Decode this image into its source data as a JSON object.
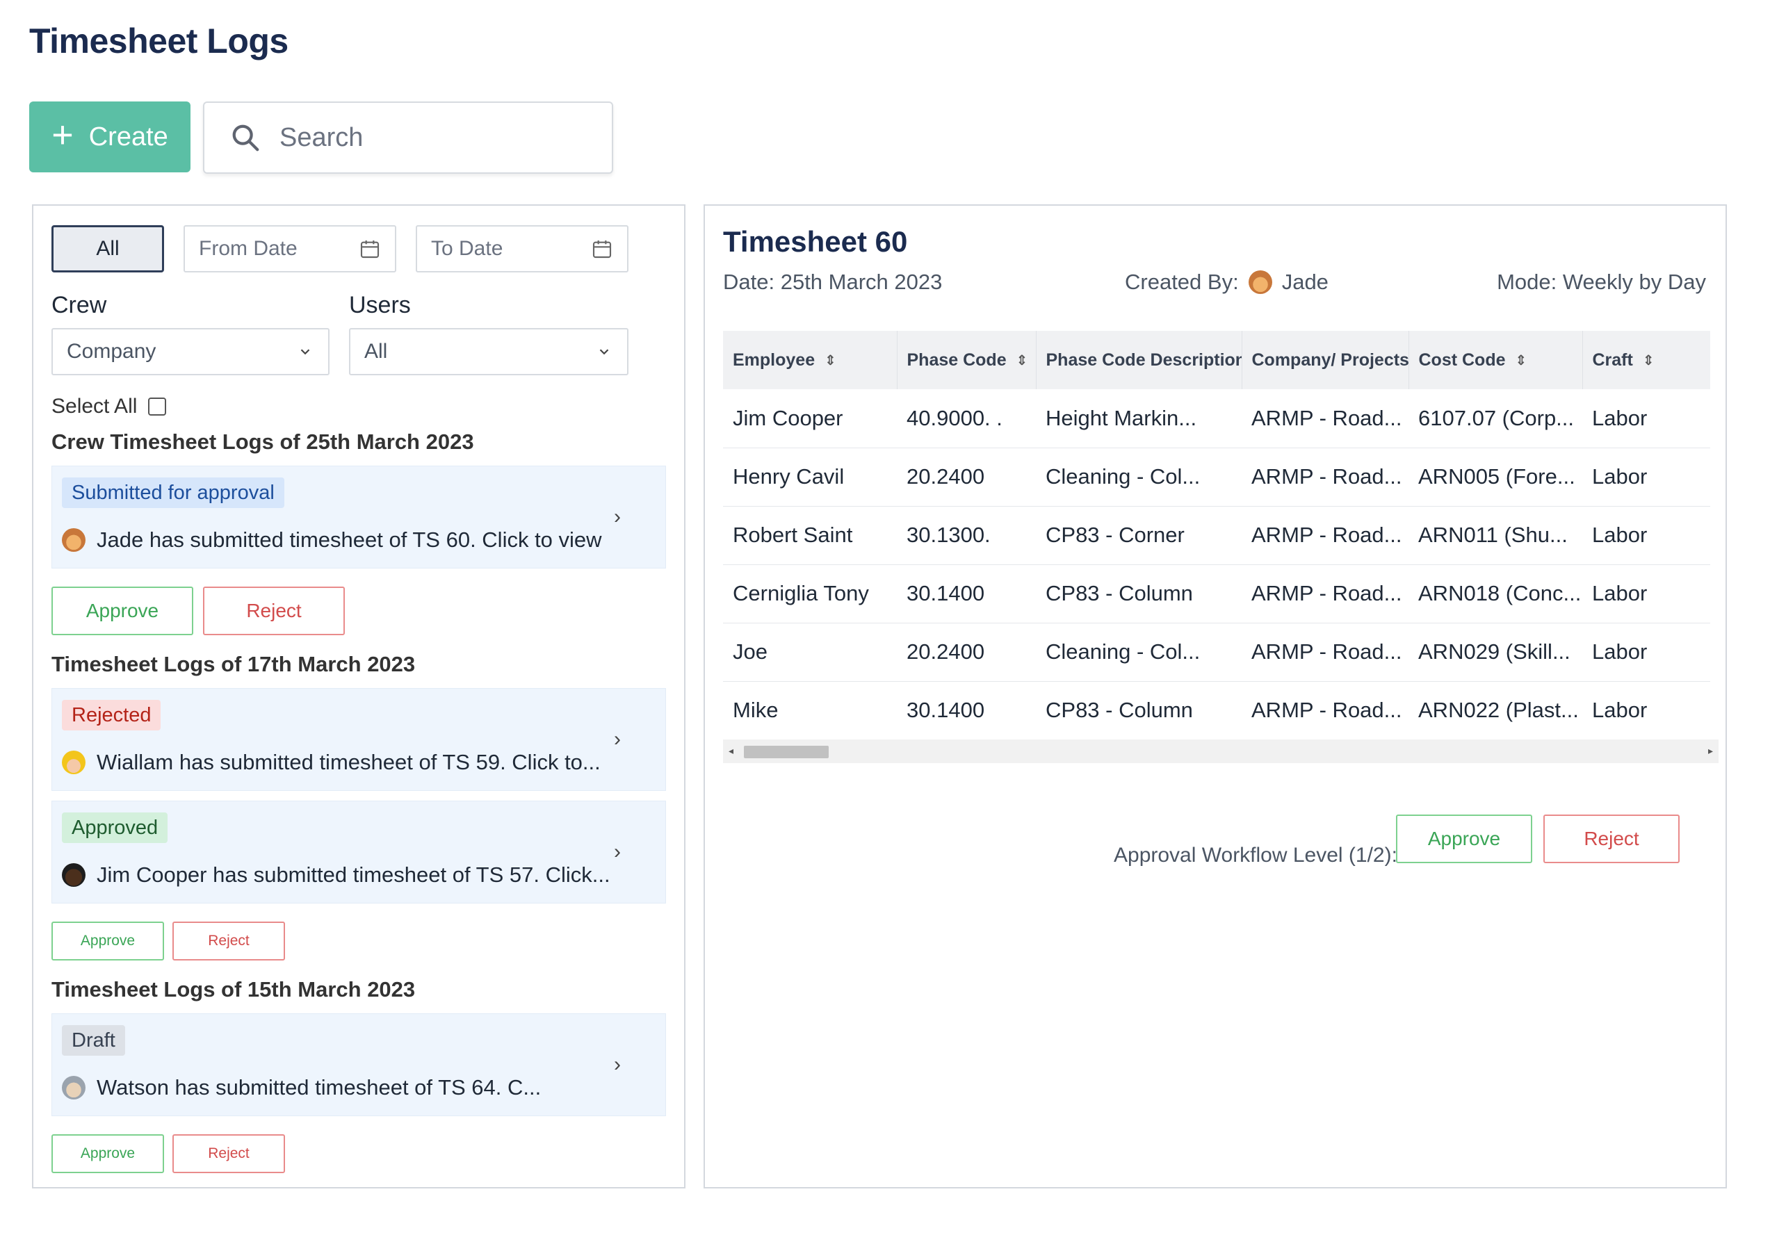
{
  "page": {
    "title": "Timesheet Logs"
  },
  "toolbar": {
    "create_label": "Create",
    "search_placeholder": "Search"
  },
  "filters": {
    "all_label": "All",
    "from_date_placeholder": "From Date",
    "to_date_placeholder": "To Date",
    "crew_label": "Crew",
    "crew_value": "Company",
    "users_label": "Users",
    "users_value": "All",
    "select_all_label": "Select All"
  },
  "sections": [
    {
      "title": "Crew Timesheet Logs of 25th March 2023",
      "cards": [
        {
          "status": "Submitted for approval",
          "text": "Jade has submitted timesheet of TS 60. Click to view"
        }
      ],
      "approve_label": "Approve",
      "reject_label": "Reject"
    },
    {
      "title": "Timesheet Logs of 17th March 2023",
      "cards": [
        {
          "status": "Rejected",
          "text": "Wiallam has submitted timesheet of TS 59. Click to..."
        },
        {
          "status": "Approved",
          "text": "Jim Cooper has submitted timesheet of TS 57. Click..."
        }
      ],
      "approve_label": "Approve",
      "reject_label": "Reject"
    },
    {
      "title": "Timesheet Logs of 15th March 2023",
      "cards": [
        {
          "status": "Draft",
          "text": "Watson has submitted timesheet of TS 64. C..."
        }
      ],
      "approve_label": "Approve",
      "reject_label": "Reject"
    }
  ],
  "detail": {
    "title": "Timesheet 60",
    "date": "Date: 25th March 2023",
    "created_by_label": "Created By:",
    "created_by_name": "Jade",
    "mode": "Mode: Weekly by Day",
    "table": {
      "columns": [
        "Employee",
        "Phase Code",
        "Phase Code Description",
        "Company/ Projects",
        "Cost Code",
        "Craft"
      ],
      "rows": [
        [
          "Jim Cooper",
          "40.9000.   .",
          "Height Markin...",
          "ARMP - Road...",
          "6107.07 (Corp...",
          "Labor"
        ],
        [
          "Henry Cavil",
          "20.2400",
          "Cleaning - Col...",
          "ARMP - Road...",
          "ARN005 (Fore...",
          "Labor"
        ],
        [
          "Robert Saint",
          "30.1300.",
          "CP83 - Corner",
          "ARMP - Road...",
          "ARN011 (Shu...",
          "Labor"
        ],
        [
          "Cerniglia Tony",
          "30.1400",
          "CP83 - Column",
          "ARMP - Road...",
          "ARN018 (Conc...",
          "Labor"
        ],
        [
          "Joe",
          "20.2400",
          "Cleaning - Col...",
          "ARMP - Road...",
          "ARN029 (Skill...",
          "Labor"
        ],
        [
          "Mike",
          "30.1400",
          "CP83 - Column",
          "ARMP - Road...",
          "ARN022 (Plast...",
          "Labor"
        ]
      ]
    },
    "workflow_label": "Approval Workflow Level (1/2):",
    "approve_label": "Approve",
    "reject_label": "Reject"
  }
}
